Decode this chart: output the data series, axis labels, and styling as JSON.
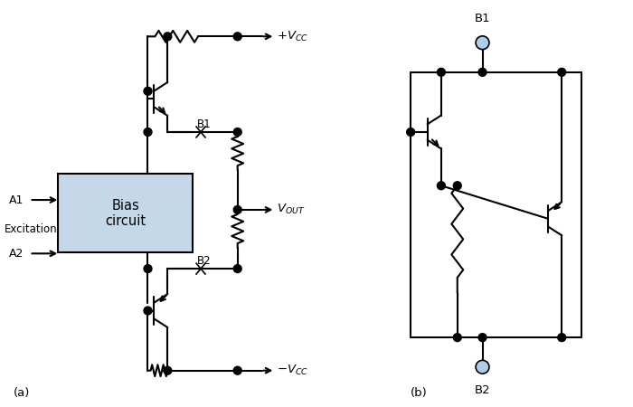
{
  "bg_color": "#ffffff",
  "line_color": "#000000",
  "terminal_color": "#aecde8",
  "box_fill": "#c5d8ea",
  "box_edge": "#000000",
  "fig_width": 7.0,
  "fig_height": 4.5,
  "caption_a": "(a)",
  "caption_b": "(b)",
  "label_bias": "Bias\ncircuit",
  "label_b1": "B1",
  "label_b2": "B2",
  "label_a1": "A1",
  "label_a2": "A2",
  "label_excitation": "Excitation"
}
